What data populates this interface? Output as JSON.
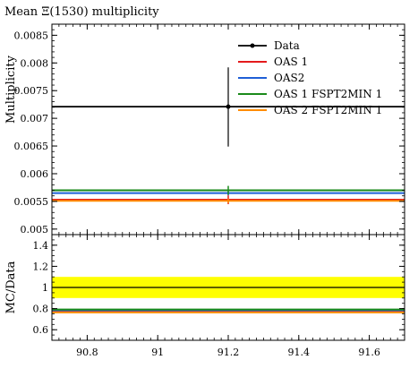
{
  "chart_data": {
    "type": "line",
    "title": "Mean Ξ(1530) multiplicity",
    "ylabel": "Multiplicity",
    "ratio_ylabel": "MC/Data",
    "xlim": [
      90.7,
      91.7
    ],
    "ylim": [
      0.0049,
      0.0087
    ],
    "ratio_ylim": [
      0.5,
      1.5
    ],
    "x_ticks": [
      90.8,
      91,
      91.2,
      91.4,
      91.6
    ],
    "x_tick_labels": [
      "90.8",
      "91",
      "91.2",
      "91.4",
      "91.6"
    ],
    "y_ticks": [
      0.005,
      0.0055,
      0.006,
      0.0065,
      0.007,
      0.0075,
      0.008,
      0.0085
    ],
    "y_tick_labels": [
      "0.005",
      "0.0055",
      "0.006",
      "0.0065",
      "0.007",
      "0.0075",
      "0.008",
      "0.0085"
    ],
    "ratio_ticks": [
      0.6,
      0.8,
      1,
      1.2,
      1.4
    ],
    "ratio_tick_labels": [
      "0.6",
      "0.8",
      "1",
      "1.2",
      "1.4"
    ],
    "legend_position": "top-right",
    "data": {
      "name": "Data",
      "x": 91.2,
      "y": 0.00721,
      "err_low": 0.00072,
      "err_high": 0.00071,
      "color": "#000000"
    },
    "series": [
      {
        "name": "OAS 1",
        "color": "#e41a1c",
        "y": 0.00553,
        "err": 8e-05,
        "ratio": 0.767
      },
      {
        "name": "OAS2",
        "color": "#1f5fd6",
        "y": 0.00565,
        "err": 4e-05,
        "ratio": 0.784
      },
      {
        "name": "OAS 1 FSPT2MIN 1",
        "color": "#1a8a1a",
        "y": 0.0057,
        "err": 8e-05,
        "ratio": 0.791
      },
      {
        "name": "OAS 2 FSPT2MIN 1",
        "color": "#ff8c00",
        "y": 0.00551,
        "err": 4e-05,
        "ratio": 0.764
      }
    ],
    "ratio_band": {
      "low": 0.9,
      "high": 1.1,
      "color": "#ffff00"
    }
  }
}
